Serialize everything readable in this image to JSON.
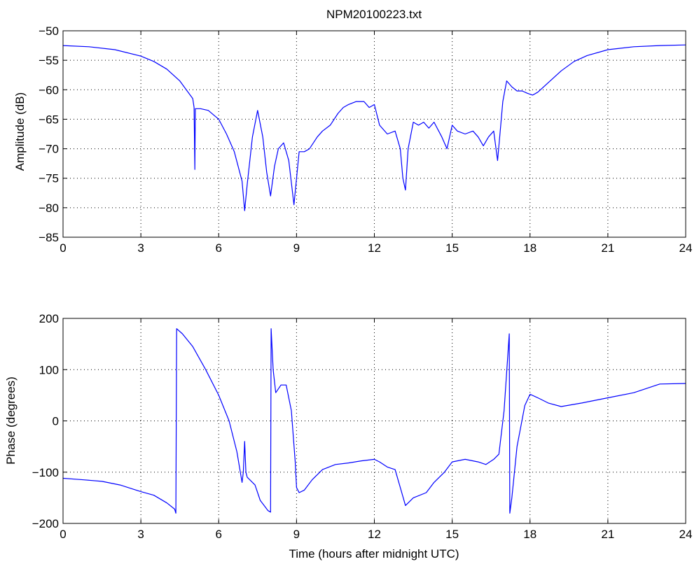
{
  "figure_title": "NPM20100223.txt",
  "chart_data": [
    {
      "type": "line",
      "title": "NPM20100223.txt",
      "xlabel": "",
      "ylabel": "Amplitude (dB)",
      "xlim": [
        0,
        24
      ],
      "ylim": [
        -85,
        -50
      ],
      "xticks": [
        0,
        3,
        6,
        9,
        12,
        15,
        18,
        21,
        24
      ],
      "yticks": [
        -85,
        -80,
        -75,
        -70,
        -65,
        -60,
        -55,
        -50
      ],
      "grid": true,
      "line_color": "#0000ff",
      "series": [
        {
          "x": [
            0,
            1,
            2,
            3,
            3.5,
            4,
            4.5,
            5,
            5.05,
            5.08,
            5.1,
            5.3,
            5.6,
            6,
            6.3,
            6.6,
            6.9,
            7.0,
            7.1,
            7.3,
            7.5,
            7.7,
            7.85,
            8.0,
            8.15,
            8.3,
            8.5,
            8.7,
            8.9,
            9.0,
            9.1,
            9.3,
            9.5,
            9.8,
            10,
            10.3,
            10.6,
            10.8,
            11,
            11.3,
            11.6,
            11.8,
            12,
            12.2,
            12.5,
            12.8,
            13.0,
            13.1,
            13.2,
            13.3,
            13.5,
            13.7,
            13.9,
            14.1,
            14.3,
            14.6,
            14.8,
            15.0,
            15.2,
            15.5,
            15.8,
            16.0,
            16.2,
            16.4,
            16.6,
            16.75,
            16.85,
            16.95,
            17.1,
            17.3,
            17.5,
            17.7,
            17.9,
            18.1,
            18.3,
            18.7,
            19.2,
            19.7,
            20.2,
            21,
            22,
            23,
            24
          ],
          "y": [
            -52.5,
            -52.7,
            -53.2,
            -54.3,
            -55.2,
            -56.5,
            -58.5,
            -61.5,
            -63,
            -73.5,
            -63.2,
            -63.2,
            -63.5,
            -65,
            -67.5,
            -70.5,
            -75.5,
            -80.5,
            -76,
            -68,
            -63.5,
            -68,
            -74,
            -78,
            -73,
            -70,
            -69,
            -72,
            -79.5,
            -75,
            -70.5,
            -70.5,
            -70,
            -68,
            -67,
            -66,
            -64,
            -63,
            -62.5,
            -62,
            -62,
            -63,
            -62.5,
            -66,
            -67.5,
            -67,
            -70,
            -75,
            -77,
            -70,
            -65.5,
            -66,
            -65.5,
            -66.5,
            -65.5,
            -68,
            -70,
            -66,
            -67,
            -67.5,
            -67,
            -68,
            -69.5,
            -68,
            -67,
            -72,
            -67,
            -62,
            -58.5,
            -59.5,
            -60.2,
            -60.2,
            -60.6,
            -60.9,
            -60.4,
            -58.8,
            -56.8,
            -55.2,
            -54.2,
            -53.2,
            -52.7,
            -52.5,
            -52.4
          ]
        }
      ]
    },
    {
      "type": "line",
      "title": "",
      "xlabel": "Time (hours after midnight UTC)",
      "ylabel": "Phase (degrees)",
      "xlim": [
        0,
        24
      ],
      "ylim": [
        -200,
        200
      ],
      "xticks": [
        0,
        3,
        6,
        9,
        12,
        15,
        18,
        21,
        24
      ],
      "yticks": [
        -200,
        -100,
        0,
        100,
        200
      ],
      "grid": true,
      "line_color": "#0000ff",
      "series": [
        {
          "x": [
            0,
            0.8,
            1.5,
            2.2,
            3,
            3.5,
            4.0,
            4.3,
            4.35,
            4.38,
            4.6,
            5.0,
            5.5,
            6.0,
            6.4,
            6.7,
            6.9,
            6.95,
            7.0,
            7.05,
            7.1,
            7.2,
            7.4,
            7.6,
            7.9,
            8.0,
            8.02,
            8.1,
            8.2,
            8.4,
            8.6,
            8.8,
            8.95,
            9.0,
            9.1,
            9.3,
            9.6,
            10.0,
            10.5,
            11.0,
            11.5,
            12.0,
            12.2,
            12.5,
            12.8,
            13.0,
            13.2,
            13.5,
            14.0,
            14.3,
            14.7,
            15.0,
            15.5,
            16.0,
            16.3,
            16.6,
            16.8,
            17.0,
            17.2,
            17.22,
            17.3,
            17.5,
            17.8,
            18.0,
            18.3,
            18.7,
            19.2,
            20.0,
            21.0,
            22.0,
            23.0,
            24.0
          ],
          "y": [
            -112,
            -115,
            -118,
            -125,
            -138,
            -145,
            -160,
            -172,
            -180,
            180,
            170,
            145,
            100,
            50,
            0,
            -60,
            -120,
            -100,
            -40,
            -100,
            -110,
            -115,
            -125,
            -155,
            -175,
            -178,
            180,
            100,
            55,
            70,
            70,
            20,
            -80,
            -130,
            -140,
            -135,
            -115,
            -95,
            -85,
            -82,
            -78,
            -75,
            -80,
            -90,
            -95,
            -130,
            -165,
            -150,
            -140,
            -120,
            -100,
            -80,
            -75,
            -80,
            -85,
            -75,
            -65,
            20,
            170,
            -180,
            -150,
            -50,
            30,
            52,
            45,
            35,
            28,
            35,
            45,
            55,
            72,
            73
          ]
        }
      ]
    }
  ]
}
